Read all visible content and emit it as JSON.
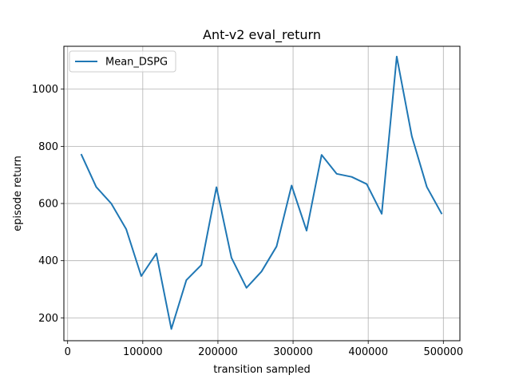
{
  "chart_data": {
    "type": "line",
    "title": "Ant-v2 eval_return",
    "xlabel": "transition sampled",
    "ylabel": "episode return",
    "xlim": [
      -5000,
      522000
    ],
    "ylim": [
      120,
      1150
    ],
    "xticks": [
      0,
      100000,
      200000,
      300000,
      400000,
      500000
    ],
    "yticks": [
      200,
      400,
      600,
      800,
      1000
    ],
    "grid": true,
    "legend_position": "upper left",
    "series": [
      {
        "name": "Mean_DSPG",
        "color": "#1f77b4",
        "x": [
          18000,
          38000,
          58000,
          78000,
          98000,
          118000,
          138000,
          158000,
          178000,
          198000,
          218000,
          238000,
          258000,
          278000,
          298000,
          318000,
          338000,
          358000,
          378000,
          398000,
          418000,
          438000,
          458000,
          478000,
          498000
        ],
        "y": [
          773,
          658,
          600,
          510,
          346,
          425,
          161,
          332,
          385,
          657,
          410,
          305,
          362,
          450,
          663,
          505,
          770,
          704,
          693,
          668,
          564,
          1114,
          835,
          658,
          563
        ]
      }
    ]
  }
}
